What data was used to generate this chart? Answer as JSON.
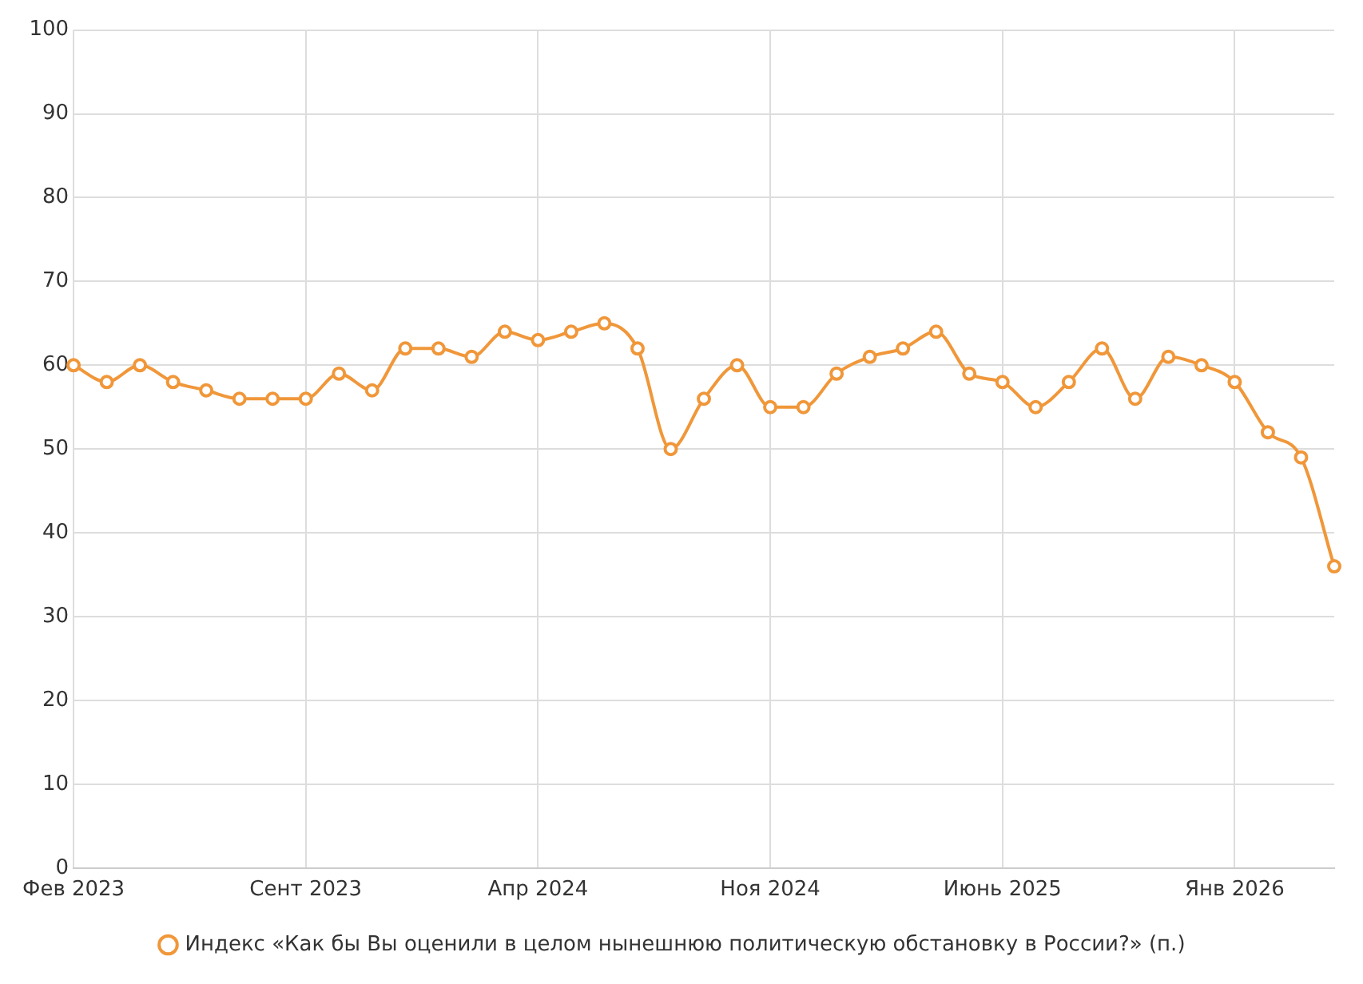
{
  "chart_data": {
    "type": "line",
    "categories": [
      "Фев 2023",
      null,
      null,
      null,
      null,
      null,
      null,
      "Сент 2023",
      null,
      null,
      null,
      null,
      null,
      null,
      "Апр 2024",
      null,
      null,
      null,
      null,
      null,
      null,
      "Ноя 2024",
      null,
      null,
      null,
      null,
      null,
      null,
      "Июнь 2025",
      null,
      null,
      null,
      null,
      null,
      null,
      "Янв 2026",
      null,
      null,
      null
    ],
    "series": [
      {
        "name": "Индекс «Как бы Вы оценили в целом нынешнюю политическую обстановку в России?» (п.)",
        "color": "#f0973a",
        "values": [
          60,
          58,
          60,
          58,
          57,
          56,
          56,
          56,
          59,
          57,
          62,
          62,
          61,
          64,
          63,
          64,
          65,
          62,
          50,
          56,
          60,
          55,
          55,
          59,
          61,
          62,
          64,
          59,
          58,
          55,
          58,
          62,
          56,
          61,
          60,
          58,
          52,
          49,
          36
        ]
      }
    ],
    "ylim": [
      0,
      100
    ],
    "yticks": [
      0,
      10,
      20,
      30,
      40,
      50,
      60,
      70,
      80,
      90,
      100
    ],
    "grid": true,
    "legend": "bottom",
    "marker": "circle",
    "line_style": "solid"
  }
}
